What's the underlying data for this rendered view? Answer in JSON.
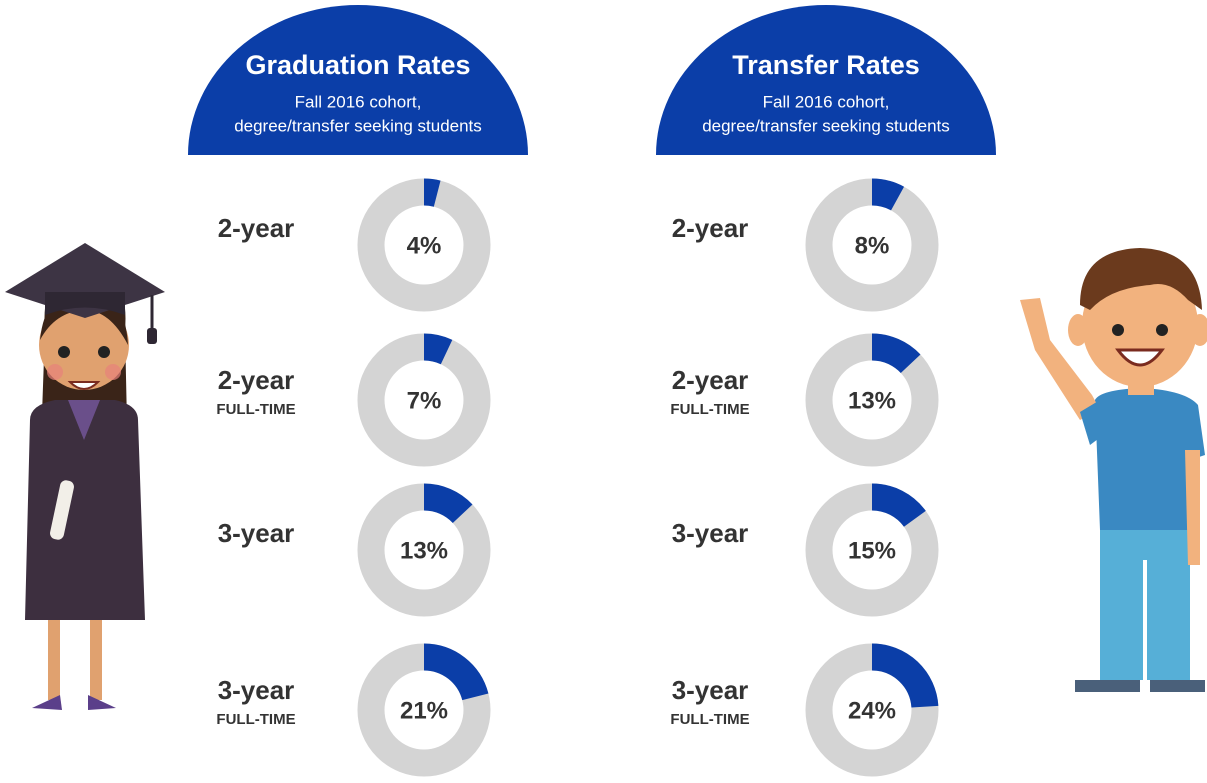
{
  "chart_data": [
    {
      "type": "donut",
      "title": "Graduation Rates",
      "subtitle": [
        "Fall 2016 cohort,",
        "degree/transfer seeking students"
      ],
      "categories": [
        "2-year",
        "2-year",
        "3-year",
        "3-year"
      ],
      "category_notes": [
        null,
        "FULL-TIME",
        null,
        "FULL-TIME"
      ],
      "values": [
        4,
        7,
        13,
        21
      ],
      "value_labels": [
        "4%",
        "7%",
        "13%",
        "21%"
      ],
      "color": "#0b3ea8",
      "track_color": "#d4d4d4"
    },
    {
      "type": "donut",
      "title": "Transfer Rates",
      "subtitle": [
        "Fall 2016 cohort,",
        "degree/transfer seeking students"
      ],
      "categories": [
        "2-year",
        "2-year",
        "3-year",
        "3-year"
      ],
      "category_notes": [
        null,
        "FULL-TIME",
        null,
        "FULL-TIME"
      ],
      "values": [
        8,
        13,
        15,
        24
      ],
      "value_labels": [
        "8%",
        "13%",
        "15%",
        "24%"
      ],
      "color": "#0b3ea8",
      "track_color": "#d4d4d4"
    }
  ]
}
